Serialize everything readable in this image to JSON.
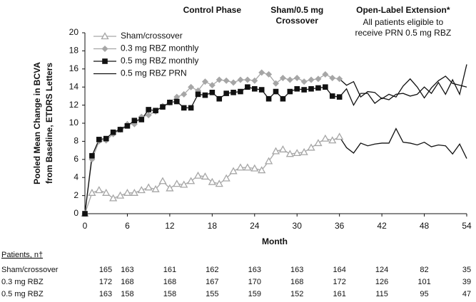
{
  "chart_data": {
    "type": "line",
    "annotations": [
      {
        "lines": [
          "Control Phase"
        ],
        "bold": true,
        "x": 18
      },
      {
        "lines": [
          "Sham/0.5 mg",
          "Crossover"
        ],
        "bold": true,
        "x": 30
      },
      {
        "lines": [
          "Open-Label Extension*"
        ],
        "bold": true,
        "x": 45
      },
      {
        "lines": [
          "All patients eligible to",
          "receive PRN 0.5 mg RBZ"
        ],
        "bold": false,
        "x": 45
      }
    ],
    "ylabel": [
      "Pooled Mean Change in BCVA",
      "from Baseline, ETDRS Letters"
    ],
    "xlabel": "Month",
    "xlim": [
      0,
      54
    ],
    "xticks": [
      0,
      6,
      12,
      18,
      24,
      30,
      36,
      42,
      48,
      54
    ],
    "ylim": [
      0,
      20
    ],
    "yticks": [
      0,
      2,
      4,
      6,
      8,
      10,
      12,
      14,
      16,
      18,
      20
    ],
    "legend": "upper left",
    "x": [
      0,
      1,
      2,
      3,
      4,
      5,
      6,
      7,
      8,
      9,
      10,
      11,
      12,
      13,
      14,
      15,
      16,
      17,
      18,
      19,
      20,
      21,
      22,
      23,
      24,
      25,
      26,
      27,
      28,
      29,
      30,
      31,
      32,
      33,
      34,
      35,
      36
    ],
    "series": [
      {
        "name": "Sham/crossover",
        "color": "#a6a6a6",
        "marker": "triangle",
        "values": [
          0,
          2.3,
          2.6,
          2.3,
          1.7,
          2.0,
          2.3,
          2.3,
          2.6,
          2.9,
          2.7,
          3.6,
          2.8,
          3.3,
          3.2,
          3.6,
          4.2,
          4.1,
          3.5,
          3.3,
          3.9,
          4.7,
          5.1,
          5.1,
          5.0,
          4.8,
          5.8,
          6.9,
          7.1,
          6.6,
          6.7,
          6.8,
          7.3,
          7.8,
          8.3,
          8.1,
          8.5
        ]
      },
      {
        "name": "0.3 mg RBZ monthly",
        "color": "#a6a6a6",
        "marker": "diamond",
        "values": [
          0,
          6.0,
          8.0,
          8.1,
          8.8,
          9.3,
          9.9,
          9.9,
          10.7,
          10.9,
          11.3,
          11.9,
          12.3,
          12.9,
          13.2,
          14.0,
          13.6,
          14.6,
          14.2,
          14.8,
          14.7,
          14.5,
          14.8,
          14.8,
          14.7,
          15.6,
          15.4,
          14.4,
          15.0,
          14.8,
          15.0,
          14.6,
          14.8,
          14.9,
          15.4,
          15.0,
          14.9
        ]
      },
      {
        "name": "0.5 mg RBZ monthly",
        "color": "#111111",
        "marker": "square",
        "values": [
          0,
          6.4,
          8.2,
          8.3,
          9.0,
          9.3,
          9.7,
          10.3,
          10.4,
          11.5,
          11.4,
          11.8,
          12.3,
          12.4,
          11.7,
          11.7,
          13.2,
          13.1,
          13.4,
          12.7,
          13.3,
          13.4,
          13.5,
          14.0,
          13.8,
          13.7,
          12.7,
          13.5,
          12.7,
          13.5,
          13.8,
          13.7,
          13.8,
          13.9,
          14.0,
          13.0,
          12.9
        ]
      }
    ],
    "extension": {
      "name": "0.5 mg RBZ PRN",
      "color": "#111111",
      "x": [
        37,
        38,
        39,
        40,
        41,
        42,
        43,
        44,
        45,
        46,
        47,
        48,
        49,
        50,
        51,
        52,
        53,
        54
      ],
      "series": [
        [
          7.3,
          6.7,
          7.8,
          7.5,
          7.7,
          7.8,
          7.8,
          9.4,
          7.9,
          7.8,
          7.6,
          7.9,
          7.4,
          7.6,
          7.5,
          6.6,
          7.7,
          6.1
        ],
        [
          14.2,
          14.6,
          12.9,
          13.5,
          13.4,
          12.7,
          13.2,
          12.9,
          14.1,
          14.9,
          14.0,
          12.8,
          13.9,
          14.7,
          15.2,
          14.4,
          14.2,
          14.0
        ],
        [
          13.8,
          12.0,
          13.3,
          13.3,
          12.2,
          12.8,
          12.6,
          13.2,
          13.3,
          13.0,
          13.2,
          14.0,
          13.3,
          14.5,
          13.2,
          14.8,
          13.2,
          16.5
        ]
      ]
    },
    "patients": {
      "title": "Patients, n†",
      "rows": [
        {
          "name": "Sham/crossover",
          "values": [
            165,
            163,
            161,
            162,
            163,
            163,
            164,
            124,
            82,
            35
          ]
        },
        {
          "name": "0.3 mg RBZ",
          "values": [
            172,
            168,
            168,
            167,
            170,
            168,
            172,
            126,
            101,
            39
          ]
        },
        {
          "name": "0.5 mg RBZ",
          "values": [
            163,
            158,
            158,
            155,
            159,
            152,
            161,
            115,
            95,
            47
          ]
        }
      ]
    }
  }
}
